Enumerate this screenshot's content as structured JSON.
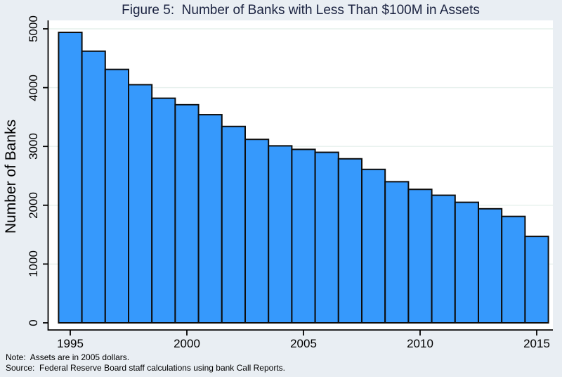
{
  "title": "Figure 5:  Number of Banks with Less Than $100M in Assets",
  "notes": {
    "note": "Note:  Assets are in 2005 dollars.",
    "source": "Source:  Federal Reserve Board staff calculations using bank Call Reports."
  },
  "chart_data": {
    "type": "bar",
    "title": "Figure 5:  Number of Banks with Less Than $100M in Assets",
    "xlabel": "",
    "ylabel": "Number of Banks",
    "categories": [
      1995,
      1996,
      1997,
      1998,
      1999,
      2000,
      2001,
      2002,
      2003,
      2004,
      2005,
      2006,
      2007,
      2008,
      2009,
      2010,
      2011,
      2012,
      2013,
      2014,
      2015
    ],
    "values": [
      4940,
      4620,
      4310,
      4050,
      3820,
      3710,
      3540,
      3340,
      3120,
      3010,
      2950,
      2900,
      2790,
      2610,
      2400,
      2270,
      2170,
      2050,
      1940,
      1810,
      1470
    ],
    "ylim": [
      0,
      5000
    ],
    "yticks": [
      0,
      1000,
      2000,
      3000,
      4000,
      5000
    ],
    "xticks": [
      1995,
      2000,
      2005,
      2010,
      2015
    ],
    "grid": true,
    "legend": "none",
    "colors": {
      "bar_fill": "#3699fc",
      "bar_outline": "#0d0d0d",
      "background": "#e9eef3",
      "plot_background": "#ffffff",
      "gridline": "#e6f0ec",
      "axis": "#000000",
      "title_text": "#1a2240",
      "tick_text": "#000000"
    }
  }
}
